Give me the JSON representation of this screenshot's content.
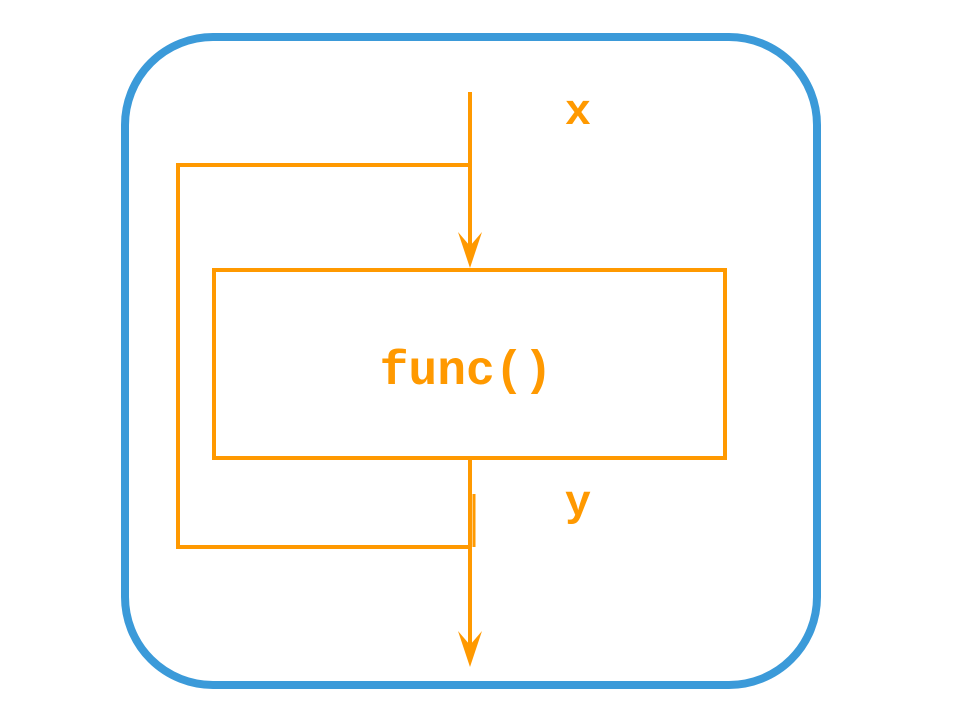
{
  "diagram": {
    "function_label": "func()",
    "input_label": "x",
    "output_label": "y"
  },
  "colors": {
    "frame": "#3b9ad9",
    "flow": "#ff9900",
    "background": "#ffffff"
  }
}
